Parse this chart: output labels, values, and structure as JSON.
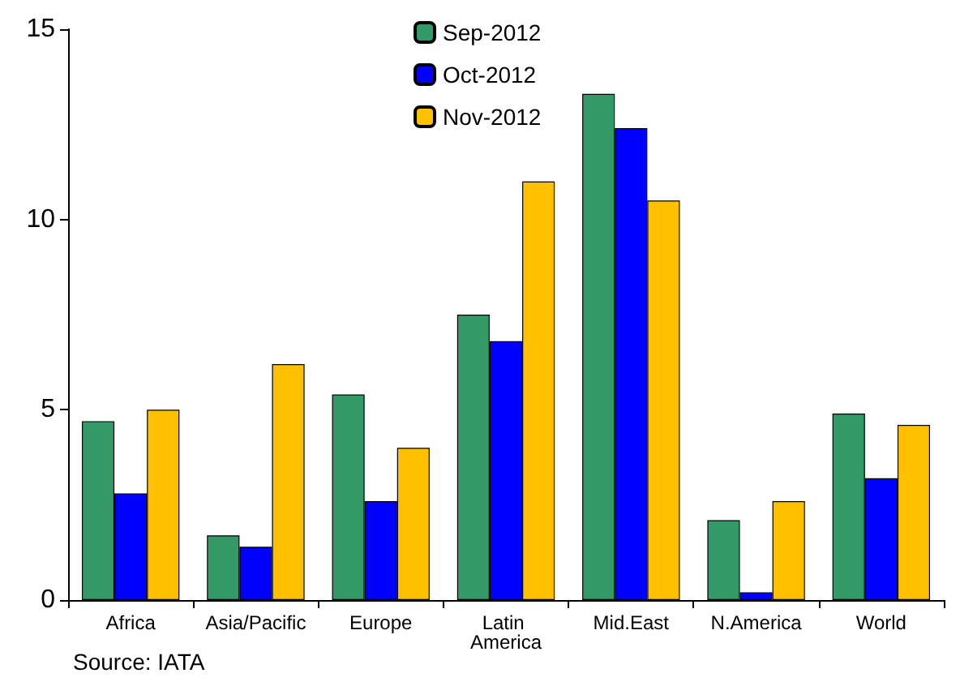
{
  "chart_data": {
    "type": "bar",
    "categories": [
      "Africa",
      "Asia/Pacific",
      "Europe",
      "Latin America",
      "Mid.East",
      "N.America",
      "World"
    ],
    "series": [
      {
        "name": "Sep-2012",
        "color": "#339966",
        "values": [
          4.7,
          1.7,
          5.4,
          7.5,
          13.3,
          2.1,
          4.9
        ]
      },
      {
        "name": "Oct-2012",
        "color": "#0000ff",
        "values": [
          2.8,
          1.4,
          2.6,
          6.8,
          12.4,
          0.2,
          3.2
        ]
      },
      {
        "name": "Nov-2012",
        "color": "#ffc000",
        "values": [
          5.0,
          6.2,
          4.0,
          11.0,
          10.5,
          2.6,
          4.6
        ]
      }
    ],
    "ylim": [
      0,
      15
    ],
    "yticks": [
      0,
      5,
      10,
      15
    ],
    "grid": false,
    "legend": "top",
    "annotations": [
      "Source: IATA"
    ]
  }
}
